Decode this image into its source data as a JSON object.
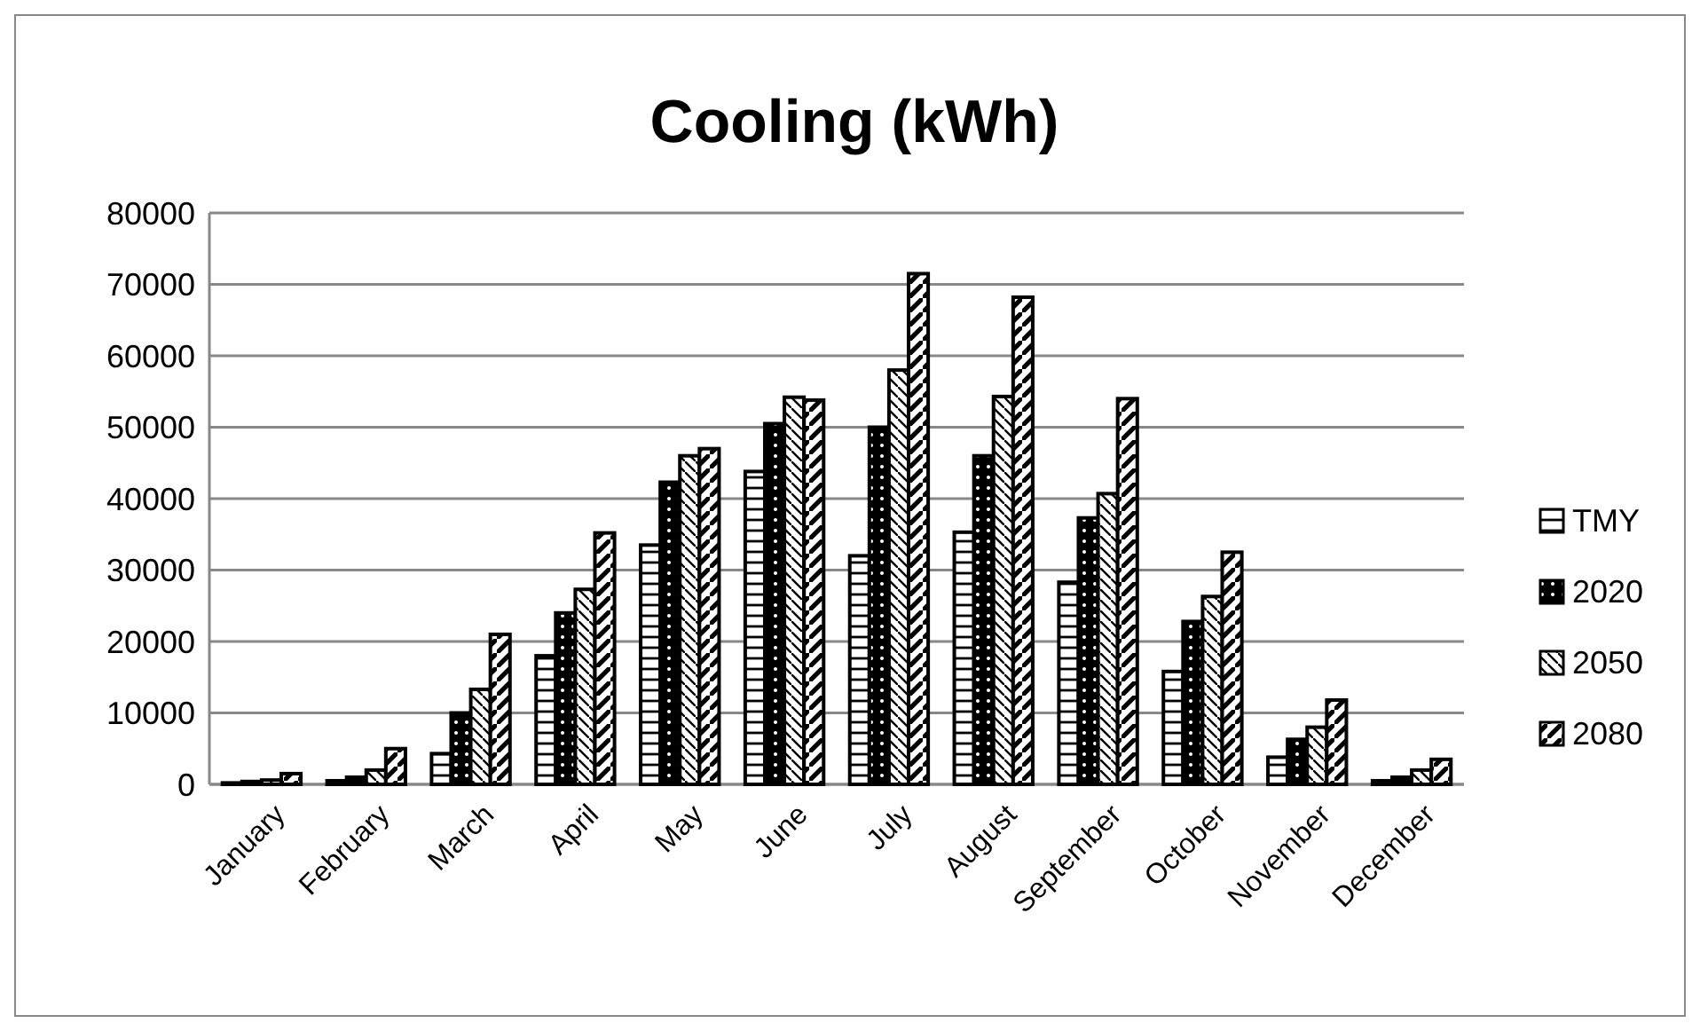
{
  "chart_data": {
    "type": "bar",
    "title": "Cooling (kWh)",
    "categories": [
      "January",
      "February",
      "March",
      "April",
      "May",
      "June",
      "July",
      "August",
      "September",
      "October",
      "November",
      "December"
    ],
    "series": [
      {
        "name": "TMY",
        "color": "#000000",
        "values": [
          200,
          500,
          4300,
          18000,
          33500,
          43800,
          32000,
          35300,
          28300,
          15800,
          3800,
          500
        ]
      },
      {
        "name": "2020",
        "color": "#000000",
        "values": [
          400,
          1000,
          10000,
          24000,
          42300,
          50500,
          50000,
          46000,
          37300,
          22800,
          6300,
          1000
        ]
      },
      {
        "name": "2050",
        "color": "#000000",
        "values": [
          600,
          2000,
          13300,
          27300,
          46000,
          54200,
          58000,
          54300,
          40700,
          26300,
          8000,
          2000
        ]
      },
      {
        "name": "2080",
        "color": "#000000",
        "values": [
          1500,
          5000,
          21000,
          35200,
          47000,
          53800,
          71500,
          68200,
          54000,
          32500,
          11800,
          3500
        ]
      }
    ],
    "ylim": [
      0,
      80000
    ],
    "yticks": [
      0,
      10000,
      20000,
      30000,
      40000,
      50000,
      60000,
      70000,
      80000
    ],
    "grid": "y",
    "legend": "right"
  }
}
